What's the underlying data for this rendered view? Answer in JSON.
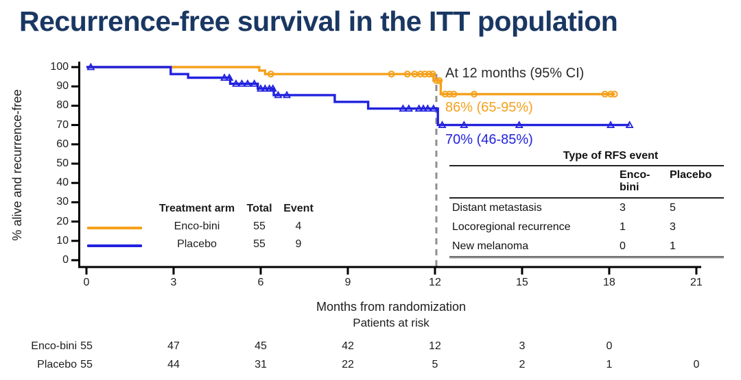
{
  "title": "Recurrence-free survival in the ITT population",
  "colors": {
    "title_navy": "#1A3763",
    "encobini_orange": "#F5A11C",
    "placebo_blue": "#2121DF",
    "axis_black": "#000000",
    "dashed_gray": "#8f8f8f",
    "text_dark": "#1c1c1c"
  },
  "annotations": {
    "at12": "At 12 months (95% CI)",
    "encobini": "86% (65-95%)",
    "placebo": "70% (46-85%)"
  },
  "legend": {
    "col_treatment": "Treatment arm",
    "col_total": "Total",
    "col_event": "Event",
    "rows": [
      {
        "arm": "Enco-bini",
        "total": "55",
        "event": "4",
        "color": "#F5A11C"
      },
      {
        "arm": "Placebo",
        "total": "55",
        "event": "9",
        "color": "#2121DF"
      }
    ]
  },
  "rfs_table": {
    "title": "Type of RFS event",
    "col1": "Enco-bini",
    "col2": "Placebo",
    "rows": [
      {
        "label": "Distant metastasis",
        "encobini": "3",
        "placebo": "5"
      },
      {
        "label": "Locoregional recurrence",
        "encobini": "1",
        "placebo": "3"
      },
      {
        "label": "New melanoma",
        "encobini": "0",
        "placebo": "1"
      }
    ]
  },
  "risk_table": {
    "title": "Patients at risk",
    "rows": [
      {
        "label": "Enco-bini",
        "values": [
          "55",
          "47",
          "45",
          "42",
          "12",
          "3",
          "0"
        ]
      },
      {
        "label": "Placebo",
        "values": [
          "55",
          "44",
          "31",
          "22",
          "5",
          "2",
          "1",
          "0"
        ]
      }
    ]
  },
  "chart_data": {
    "type": "line",
    "subtype": "kaplan-meier-step",
    "xlabel": "Months from randomization",
    "ylabel": "% alive and recurrence-free",
    "xlim": [
      0,
      21
    ],
    "ylim": [
      0,
      100
    ],
    "xticks": [
      0,
      3,
      6,
      9,
      12,
      15,
      18,
      21
    ],
    "yticks": [
      100,
      90,
      80,
      70,
      60,
      50,
      40,
      30,
      20,
      10,
      0
    ],
    "grid": false,
    "reference_line_x": 12,
    "series": [
      {
        "name": "Enco-bini",
        "color": "#F5A11C",
        "marker": "circle",
        "steps": [
          [
            0,
            100
          ],
          [
            5.95,
            100
          ],
          [
            5.95,
            98.2
          ],
          [
            6.15,
            98.2
          ],
          [
            6.15,
            96.4
          ],
          [
            11.95,
            96.4
          ],
          [
            11.95,
            93
          ],
          [
            12.2,
            93
          ],
          [
            12.2,
            86
          ],
          [
            18.2,
            86
          ]
        ],
        "censors": [
          [
            6.35,
            96.4
          ],
          [
            10.5,
            96.4
          ],
          [
            11.05,
            96.4
          ],
          [
            11.3,
            96.4
          ],
          [
            11.5,
            96.4
          ],
          [
            11.65,
            96.4
          ],
          [
            11.8,
            96.4
          ],
          [
            11.92,
            96.4
          ],
          [
            12.05,
            93
          ],
          [
            12.15,
            93
          ],
          [
            12.35,
            86
          ],
          [
            12.5,
            86
          ],
          [
            12.65,
            86
          ],
          [
            13.35,
            86
          ],
          [
            17.85,
            86
          ],
          [
            18.05,
            86
          ],
          [
            18.18,
            86
          ]
        ],
        "estimate_at_12_months": "86% (65-95%)",
        "total": 55,
        "events": 4
      },
      {
        "name": "Placebo",
        "color": "#2121DF",
        "marker": "triangle",
        "steps": [
          [
            0,
            100
          ],
          [
            2.9,
            100
          ],
          [
            2.9,
            96.4
          ],
          [
            3.5,
            96.4
          ],
          [
            3.5,
            94.5
          ],
          [
            4.95,
            94.5
          ],
          [
            4.95,
            91.4
          ],
          [
            5.9,
            91.4
          ],
          [
            5.9,
            88.9
          ],
          [
            6.45,
            88.9
          ],
          [
            6.45,
            85.5
          ],
          [
            8.55,
            85.5
          ],
          [
            8.55,
            82
          ],
          [
            9.7,
            82
          ],
          [
            9.7,
            78.5
          ],
          [
            12.1,
            78.5
          ],
          [
            12.1,
            70
          ],
          [
            18.7,
            70
          ]
        ],
        "censors": [
          [
            0.15,
            100
          ],
          [
            4.75,
            94.5
          ],
          [
            4.92,
            94.5
          ],
          [
            5.15,
            91.4
          ],
          [
            5.35,
            91.4
          ],
          [
            5.55,
            91.4
          ],
          [
            5.78,
            91.4
          ],
          [
            6.0,
            88.9
          ],
          [
            6.15,
            88.9
          ],
          [
            6.3,
            88.9
          ],
          [
            6.42,
            88.9
          ],
          [
            6.6,
            85.5
          ],
          [
            6.9,
            85.5
          ],
          [
            10.9,
            78.5
          ],
          [
            11.1,
            78.5
          ],
          [
            11.45,
            78.5
          ],
          [
            11.6,
            78.5
          ],
          [
            11.75,
            78.5
          ],
          [
            11.95,
            78.5
          ],
          [
            12.25,
            70
          ],
          [
            13.0,
            70
          ],
          [
            14.9,
            70
          ],
          [
            18.05,
            70
          ],
          [
            18.7,
            70
          ]
        ],
        "estimate_at_12_months": "70% (46-85%)",
        "total": 55,
        "events": 9
      }
    ]
  }
}
